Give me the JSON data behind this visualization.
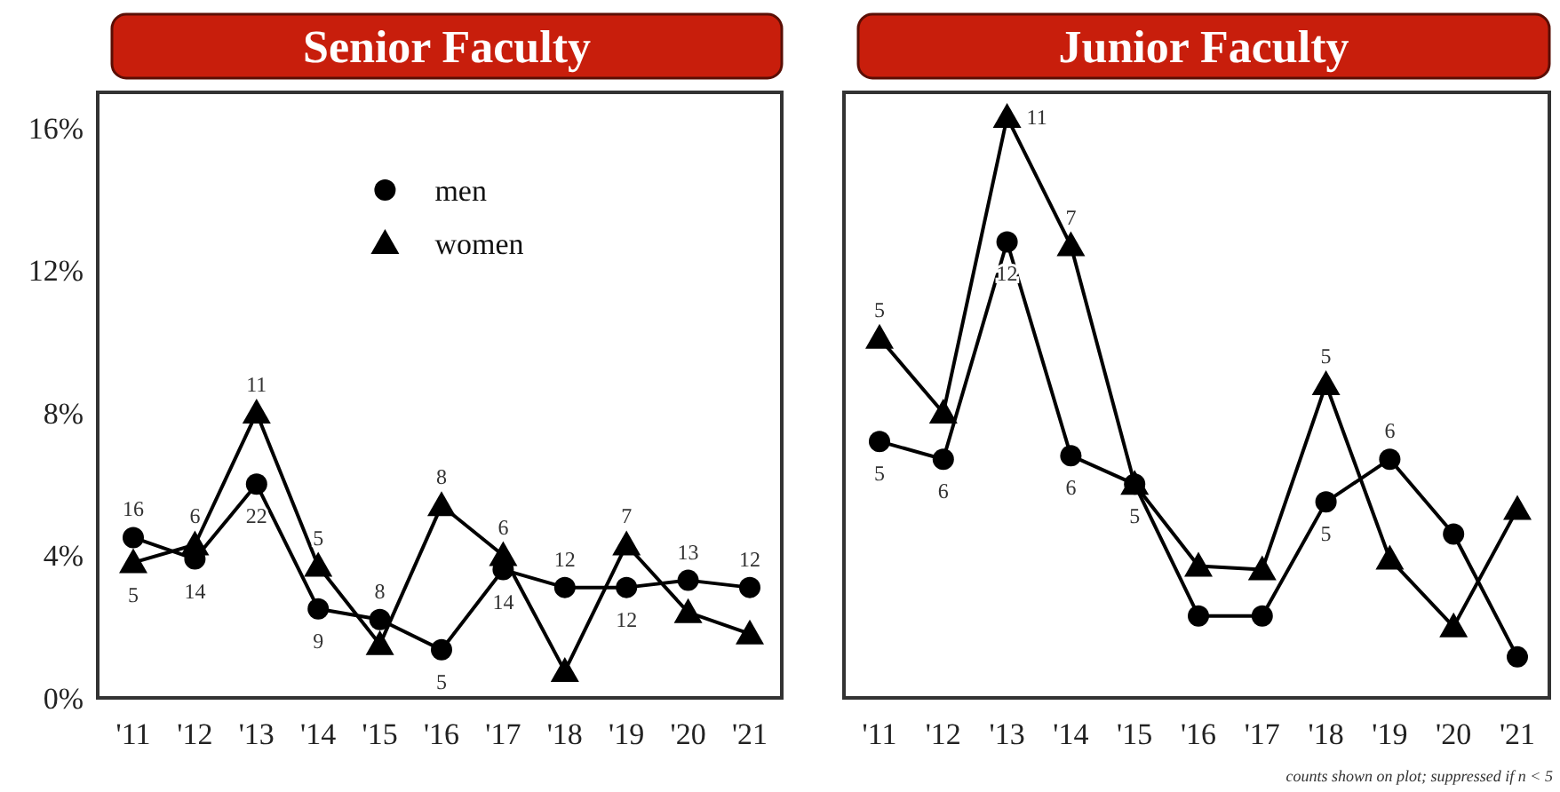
{
  "chart_data": [
    {
      "type": "line",
      "title": "Senior Faculty",
      "categories": [
        "'11",
        "'12",
        "'13",
        "'14",
        "'15",
        "'16",
        "'17",
        "'18",
        "'19",
        "'20",
        "'21"
      ],
      "ylim": [
        0,
        17
      ],
      "yticks": [
        {
          "value": 0,
          "label": "0%"
        },
        {
          "value": 4,
          "label": "4%"
        },
        {
          "value": 8,
          "label": "8%"
        },
        {
          "value": 12,
          "label": "12%"
        },
        {
          "value": 16,
          "label": "16%"
        }
      ],
      "legend": "top",
      "grid": false,
      "series": [
        {
          "name": "men",
          "color": "#000000",
          "marker": "circle",
          "values": [
            4.5,
            3.9,
            6.0,
            2.5,
            2.2,
            1.35,
            3.6,
            3.1,
            3.1,
            3.3,
            3.1
          ]
        },
        {
          "name": "women",
          "color": "#000000",
          "marker": "triangle",
          "values": [
            3.8,
            4.3,
            8.0,
            3.7,
            1.5,
            5.4,
            4.0,
            0.75,
            4.3,
            2.4,
            1.8
          ]
        }
      ],
      "annotations": [
        {
          "text": "16",
          "x": "'11",
          "y": 4.5
        },
        {
          "text": "14",
          "x": "'12",
          "y": 3.9
        },
        {
          "text": "22",
          "x": "'13",
          "y": 6.0
        },
        {
          "text": "9",
          "x": "'14",
          "y": 2.5
        },
        {
          "text": "8",
          "x": "'15",
          "y": 2.2
        },
        {
          "text": "5",
          "x": "'16",
          "y": 1.35
        },
        {
          "text": "14",
          "x": "'17",
          "y": 3.6
        },
        {
          "text": "12",
          "x": "'18",
          "y": 3.1
        },
        {
          "text": "12",
          "x": "'19",
          "y": 3.1
        },
        {
          "text": "13",
          "x": "'20",
          "y": 3.3
        },
        {
          "text": "12",
          "x": "'21",
          "y": 3.1
        },
        {
          "text": "5",
          "x": "'11",
          "y": 3.8
        },
        {
          "text": "6",
          "x": "'12",
          "y": 4.3
        },
        {
          "text": "11",
          "x": "'13",
          "y": 8.0
        },
        {
          "text": "5",
          "x": "'14",
          "y": 3.7
        },
        {
          "text": "8",
          "x": "'16",
          "y": 5.4
        },
        {
          "text": "6",
          "x": "'17",
          "y": 4.0
        },
        {
          "text": "7",
          "x": "'19",
          "y": 4.3
        }
      ]
    },
    {
      "type": "line",
      "title": "Junior Faculty",
      "categories": [
        "'11",
        "'12",
        "'13",
        "'14",
        "'15",
        "'16",
        "'17",
        "'18",
        "'19",
        "'20",
        "'21"
      ],
      "ylim": [
        0,
        17
      ],
      "tick_labels": "x",
      "legend": false,
      "grid": false,
      "series": [
        {
          "color": "#000000",
          "marker": "circle",
          "values": [
            7.2,
            6.7,
            12.8,
            6.8,
            6.0,
            2.3,
            2.3,
            5.5,
            6.7,
            4.6,
            1.15
          ]
        },
        {
          "color": "#000000",
          "marker": "triangle",
          "values": [
            10.1,
            8.0,
            16.3,
            12.7,
            6.0,
            3.7,
            3.6,
            8.8,
            3.9,
            2.0,
            5.3
          ]
        }
      ],
      "annotations": [
        {
          "text": "5",
          "x": "'11",
          "y": 7.2
        },
        {
          "text": "6",
          "x": "'12",
          "y": 6.7
        },
        {
          "text": "12",
          "x": "'13",
          "y": 12.8
        },
        {
          "text": "6",
          "x": "'14",
          "y": 6.8
        },
        {
          "text": "5",
          "x": "'15",
          "y": 6.0
        },
        {
          "text": "5",
          "x": "'18",
          "y": 5.5
        },
        {
          "text": "6",
          "x": "'19",
          "y": 6.7
        },
        {
          "text": "5",
          "x": "'11",
          "y": 10.1
        },
        {
          "text": "11",
          "x": "'13",
          "y": 16.3
        },
        {
          "text": "7",
          "x": "'14",
          "y": 12.7
        },
        {
          "text": "5",
          "x": "'18",
          "y": 8.8
        },
        "counts shown on plot; suppressed if n < 5"
      ]
    }
  ]
}
